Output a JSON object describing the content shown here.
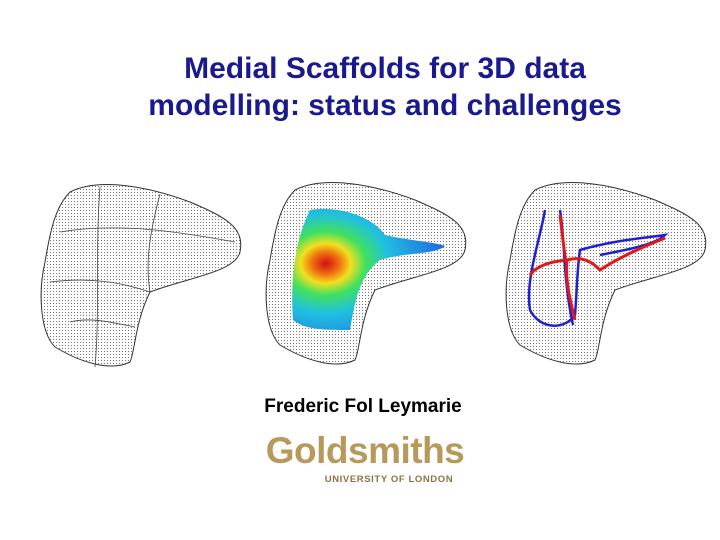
{
  "title": {
    "lines": [
      "Medial Scaffolds for 3D data",
      "modelling: status and challenges"
    ]
  },
  "author": "Frederic Fol Leymarie",
  "logo": {
    "name": "Goldsmiths",
    "subtitle": "UNIVERSITY OF LONDON"
  }
}
